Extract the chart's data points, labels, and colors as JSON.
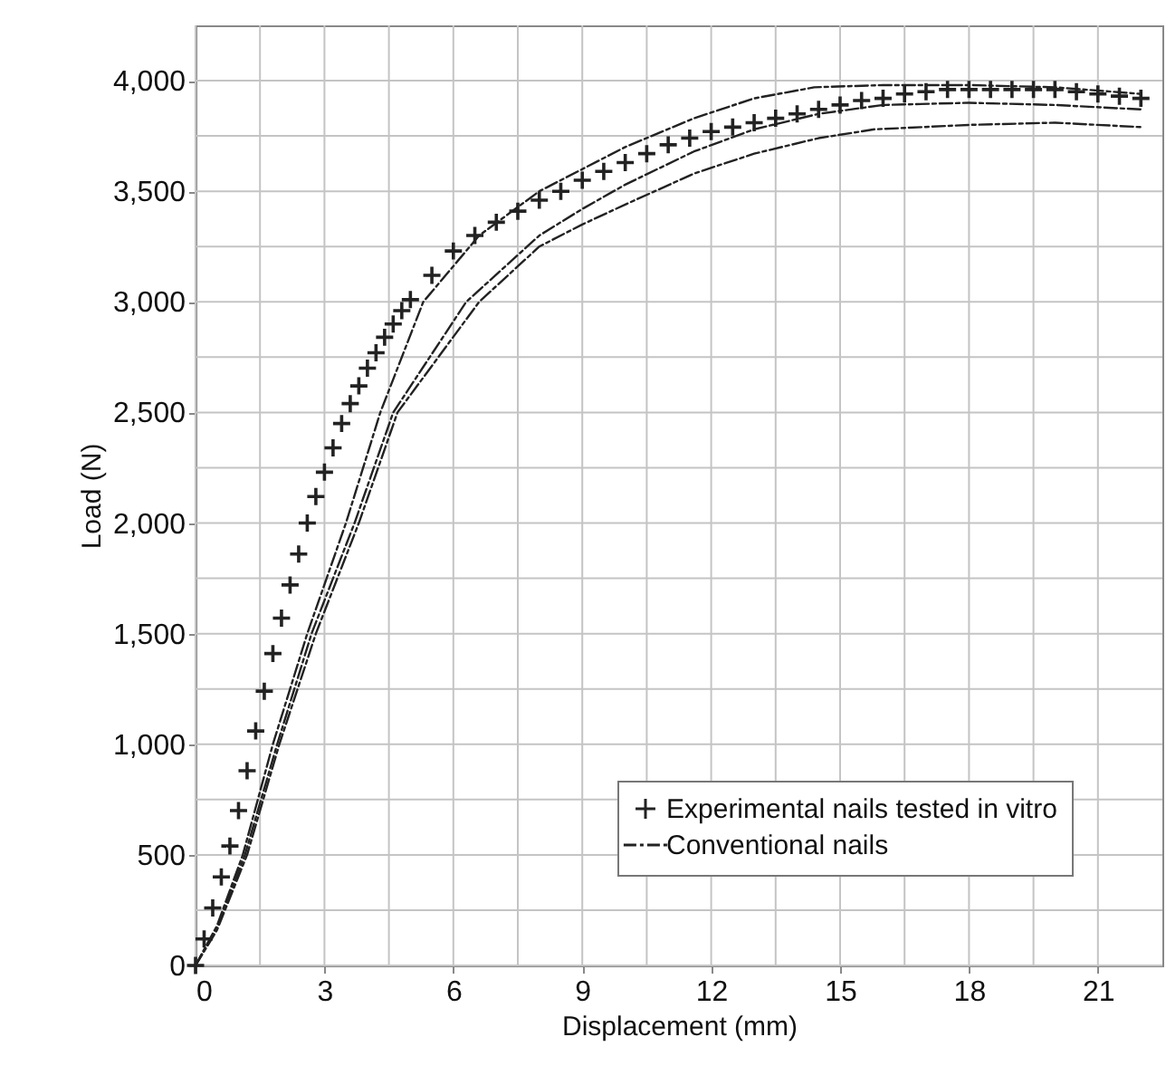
{
  "chart_data": {
    "type": "line",
    "xlabel": "Displacement (mm)",
    "ylabel": "Load (N)",
    "xlim": [
      0,
      22.5
    ],
    "ylim": [
      0,
      4250
    ],
    "xticks": [
      0,
      {
        "value": 1.5,
        "label": null
      },
      3,
      {
        "value": 4.5,
        "label": null
      },
      6,
      {
        "value": 7.5,
        "label": null
      },
      9,
      {
        "value": 10.5,
        "label": null
      },
      12,
      {
        "value": 13.5,
        "label": null
      },
      15,
      {
        "value": 16.5,
        "label": null
      },
      18,
      {
        "value": 19.5,
        "label": null
      },
      21
    ],
    "yticks": [
      0,
      {
        "value": 250,
        "label": null
      },
      500,
      {
        "value": 750,
        "label": null
      },
      {
        "value": 1000,
        "label": "1,000"
      },
      {
        "value": 1250,
        "label": null
      },
      {
        "value": 1500,
        "label": "1,500"
      },
      {
        "value": 1750,
        "label": null
      },
      {
        "value": 2000,
        "label": "2,000"
      },
      {
        "value": 2250,
        "label": null
      },
      {
        "value": 2500,
        "label": "2,500"
      },
      {
        "value": 2750,
        "label": null
      },
      {
        "value": 3000,
        "label": "3,000"
      },
      {
        "value": 3250,
        "label": null
      },
      {
        "value": 3500,
        "label": "3,500"
      },
      {
        "value": 3750,
        "label": null
      },
      {
        "value": 4000,
        "label": "4,000"
      }
    ],
    "grid": true,
    "legend": "bottom right",
    "line_style": "dashed",
    "series": [
      {
        "name": "Experimental nails tested in vitro",
        "type": "scatter",
        "marker": "cross",
        "color": "#222222",
        "x": [
          0,
          0.2,
          0.4,
          0.6,
          0.8,
          1.0,
          1.2,
          1.4,
          1.6,
          1.8,
          2.0,
          2.2,
          2.4,
          2.6,
          2.8,
          3.0,
          3.2,
          3.4,
          3.6,
          3.8,
          4.0,
          4.2,
          4.4,
          4.6,
          4.8,
          5.0,
          5.5,
          6.0,
          6.5,
          7.0,
          7.5,
          8.0,
          8.5,
          9.0,
          9.5,
          10,
          10.5,
          11,
          11.5,
          12,
          12.5,
          13,
          13.5,
          14,
          14.5,
          15,
          15.5,
          16,
          16.5,
          17,
          17.5,
          18,
          18.5,
          19,
          19.5,
          20,
          20.5,
          21,
          21.5,
          22
        ],
        "values": [
          0,
          120,
          260,
          400,
          540,
          700,
          880,
          1060,
          1240,
          1410,
          1570,
          1720,
          1860,
          2000,
          2120,
          2230,
          2340,
          2450,
          2540,
          2620,
          2700,
          2770,
          2840,
          2900,
          2960,
          3010,
          3120,
          3230,
          3300,
          3360,
          3410,
          3460,
          3500,
          3550,
          3590,
          3630,
          3670,
          3710,
          3740,
          3770,
          3790,
          3810,
          3830,
          3850,
          3870,
          3890,
          3910,
          3920,
          3940,
          3950,
          3960,
          3960,
          3960,
          3960,
          3960,
          3960,
          3950,
          3940,
          3930,
          3920
        ]
      },
      {
        "name": "Conventional nails",
        "color": "#222222",
        "x": [
          0,
          0.5,
          1.1,
          1.8,
          2.6,
          3.5,
          4.3,
          5.3,
          6.6,
          8,
          9,
          10,
          11.6,
          13,
          14.4,
          16,
          18,
          20,
          22
        ],
        "values": [
          0,
          180,
          500,
          1000,
          1500,
          2000,
          2500,
          3000,
          3300,
          3500,
          3600,
          3700,
          3830,
          3920,
          3970,
          3980,
          3980,
          3970,
          3940
        ]
      },
      {
        "color": "#222222",
        "x": [
          0,
          0.5,
          1.15,
          1.9,
          2.7,
          3.7,
          4.6,
          6.3,
          8,
          9,
          10,
          11.6,
          13,
          14.5,
          16,
          18,
          20,
          22
        ],
        "values": [
          0,
          170,
          500,
          1000,
          1500,
          2000,
          2500,
          3000,
          3300,
          3420,
          3530,
          3680,
          3780,
          3850,
          3890,
          3900,
          3890,
          3870
        ]
      },
      {
        "color": "#222222",
        "x": [
          0,
          0.5,
          1.2,
          1.95,
          2.8,
          3.8,
          4.7,
          6.6,
          8,
          9,
          10,
          11.6,
          13,
          14.5,
          15.8,
          18,
          20,
          22
        ],
        "values": [
          0,
          160,
          500,
          1000,
          1500,
          2000,
          2500,
          3000,
          3250,
          3350,
          3440,
          3580,
          3670,
          3740,
          3780,
          3800,
          3810,
          3790
        ]
      }
    ]
  }
}
